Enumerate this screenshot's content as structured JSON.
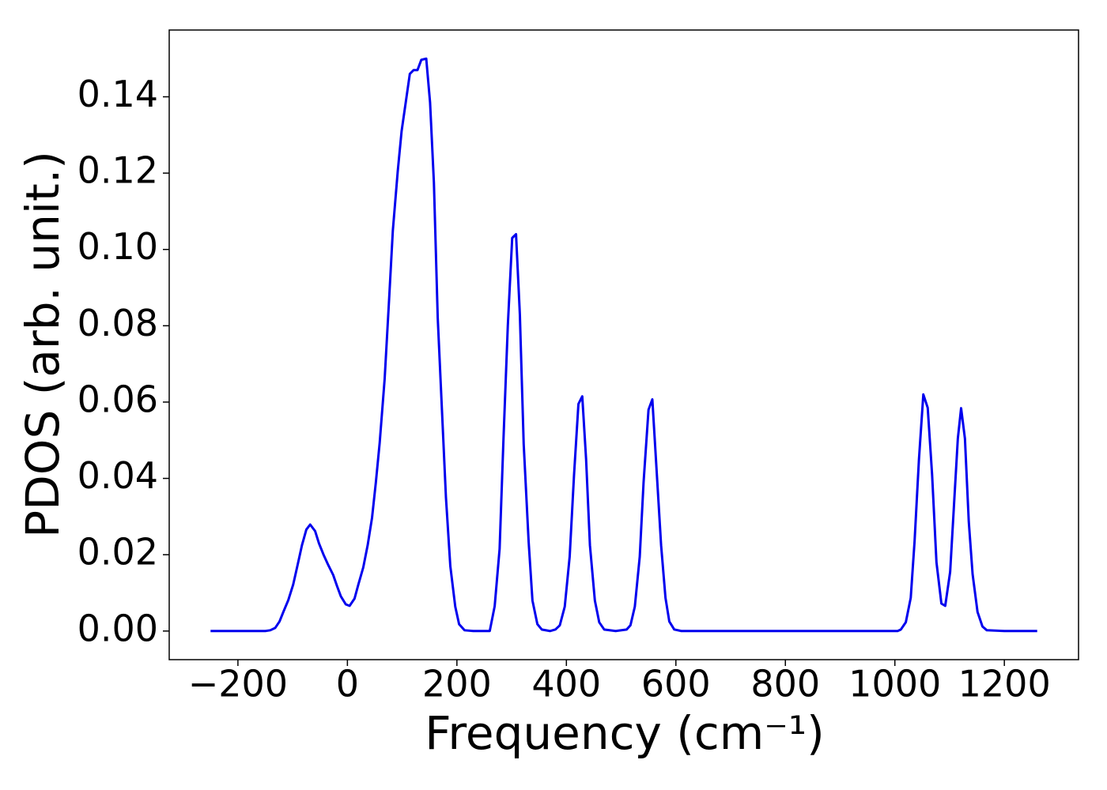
{
  "chart_data": {
    "type": "line",
    "xlabel": "Frequency (cm⁻¹)",
    "ylabel": "PDOS (arb. unit.)",
    "color": "#0000ee",
    "x": [
      -250,
      -200,
      -150,
      -141,
      -132,
      -124,
      -117,
      -108,
      -99,
      -91,
      -83,
      -75,
      -68,
      -59,
      -52,
      -43,
      -35,
      -26,
      -19,
      -12,
      -3,
      4,
      13,
      20,
      29,
      37,
      45,
      52,
      59,
      68,
      76,
      83,
      92,
      99,
      108,
      114,
      121,
      128,
      135,
      144,
      151,
      158,
      165,
      180,
      188,
      197,
      204,
      214,
      230,
      260,
      269,
      278,
      285,
      293,
      301,
      308,
      315,
      322,
      331,
      338,
      347,
      355,
      370,
      380,
      388,
      397,
      406,
      414,
      422,
      429,
      436,
      443,
      452,
      460,
      469,
      490,
      510,
      517,
      525,
      534,
      541,
      550,
      557,
      564,
      573,
      581,
      588,
      597,
      610,
      800,
      1005,
      1011,
      1020,
      1029,
      1036,
      1044,
      1052,
      1060,
      1068,
      1076,
      1085,
      1092,
      1101,
      1108,
      1115,
      1121,
      1128,
      1135,
      1142,
      1151,
      1160,
      1168,
      1200,
      1260
    ],
    "values": [
      0,
      0,
      0,
      0.0002,
      0.0008,
      0.0025,
      0.005,
      0.0081,
      0.0122,
      0.0173,
      0.0225,
      0.0266,
      0.0279,
      0.0262,
      0.023,
      0.0198,
      0.0173,
      0.0147,
      0.0118,
      0.0091,
      0.007,
      0.0066,
      0.0085,
      0.0122,
      0.0167,
      0.0225,
      0.0297,
      0.039,
      0.0494,
      0.066,
      0.0865,
      0.105,
      0.1206,
      0.131,
      0.14,
      0.146,
      0.147,
      0.147,
      0.1497,
      0.15,
      0.1385,
      0.1175,
      0.082,
      0.035,
      0.017,
      0.0064,
      0.0018,
      0.0002,
      0,
      0,
      0.0065,
      0.0215,
      0.05,
      0.08,
      0.103,
      0.104,
      0.083,
      0.049,
      0.0235,
      0.008,
      0.0018,
      0.0004,
      0,
      0.0004,
      0.0015,
      0.0064,
      0.0195,
      0.041,
      0.0595,
      0.0615,
      0.045,
      0.0225,
      0.008,
      0.0023,
      0.0004,
      0,
      0.0004,
      0.0015,
      0.0064,
      0.0195,
      0.039,
      0.058,
      0.0607,
      0.044,
      0.0225,
      0.0087,
      0.0025,
      0.0004,
      0,
      0,
      0,
      0.0004,
      0.0023,
      0.0087,
      0.0235,
      0.045,
      0.062,
      0.0585,
      0.041,
      0.018,
      0.0072,
      0.0066,
      0.0155,
      0.033,
      0.0504,
      0.0584,
      0.0504,
      0.0287,
      0.0149,
      0.005,
      0.0012,
      0.0002,
      0,
      0
    ],
    "xlim": [
      -325.5,
      1335.5
    ],
    "ylim": [
      -0.0075,
      0.1575
    ],
    "xticks": [
      {
        "value": -200,
        "label": "−200"
      },
      0,
      200,
      400,
      600,
      800,
      1000,
      1200
    ],
    "yticks": [
      {
        "value": 0,
        "label": "0.00"
      },
      {
        "value": 0.02,
        "label": "0.02"
      },
      {
        "value": 0.04,
        "label": "0.04"
      },
      {
        "value": 0.06,
        "label": "0.06"
      },
      {
        "value": 0.08,
        "label": "0.08"
      },
      {
        "value": 0.1,
        "label": "0.10"
      },
      {
        "value": 0.12,
        "label": "0.12"
      },
      {
        "value": 0.14,
        "label": "0.14"
      }
    ],
    "grid": false
  }
}
